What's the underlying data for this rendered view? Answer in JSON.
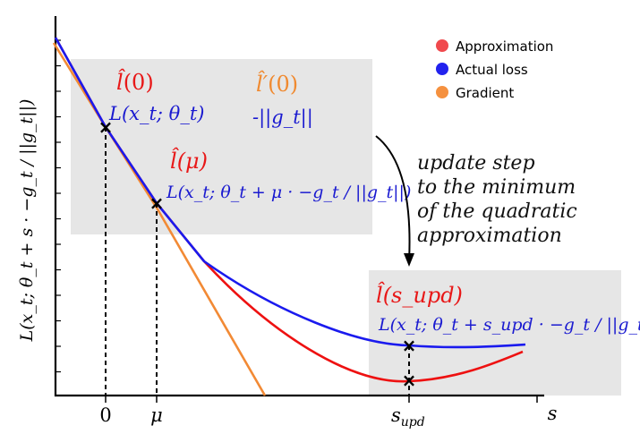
{
  "legend": [
    {
      "label": "Approximation",
      "color": "#f0494d"
    },
    {
      "label": "Actual loss",
      "color": "#2222ee"
    },
    {
      "label": "Gradient",
      "color": "#f5913f"
    }
  ],
  "colors": {
    "approximation": "#ee1111",
    "actual": "#1a1aee",
    "gradient": "#f28a35",
    "box": "#e6e6e6",
    "orange_label": "#f08a30",
    "red_label": "#e81818",
    "blue_label": "#1a1ad0"
  },
  "axes": {
    "ylabel": "L(x_t; θ_t + s · −g_t / ||g_t||)",
    "xlabel": "s",
    "xticks": {
      "zero": "0",
      "mu": "μ",
      "supd_base": "s",
      "supd_sub": "upd"
    }
  },
  "annotations": {
    "l0": {
      "hat": "l̂",
      "arg": "(0)"
    },
    "l0_loss": "L(x_t; θ_t)",
    "lprime0": {
      "hat": "l̂′",
      "arg": "(0)"
    },
    "neg_grad_norm": "-||g_t||",
    "lmu": {
      "hat": "l̂",
      "arg": "(μ)"
    },
    "lmu_loss": "L(x_t; θ_t + μ · −g_t / ||g_t||)",
    "lsupd": {
      "hat": "l̂",
      "arg": "(s_upd)"
    },
    "lsupd_loss": "L(x_t; θ_t + s_upd · −g_t / ||g_t||)",
    "step_text": [
      "update step",
      "to the minimum",
      "of the quadratic",
      "approximation"
    ]
  },
  "markers": [
    "×",
    "×",
    "×",
    "×"
  ]
}
